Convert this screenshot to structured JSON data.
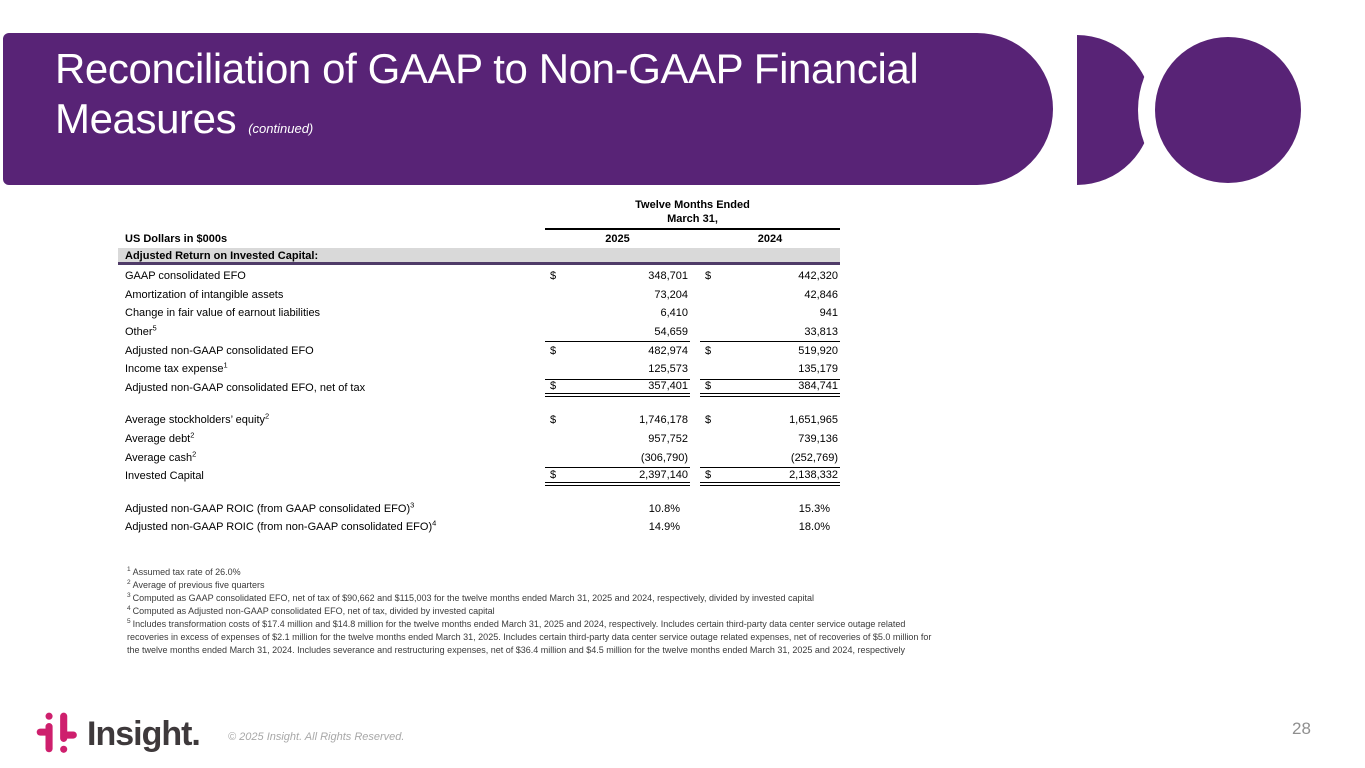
{
  "slide": {
    "title": {
      "line1": "Reconciliation of GAAP to Non-GAAP Financial",
      "line2": "Measures",
      "continued": "(continued)"
    },
    "page_number": "28",
    "copyright": "© 2025 Insight. All Rights Reserved.",
    "logo_text": "Insight.",
    "colors": {
      "banner_purple": "#582376",
      "logo_pink": "#ce1f6d",
      "section_band_gray": "#d9d9d9",
      "section_rule_purple": "#4f3b68",
      "logo_text_dark": "#3e393b"
    }
  },
  "table": {
    "period_header_line1": "Twelve Months Ended",
    "period_header_line2": "March 31,",
    "units_label": "US Dollars in $000s",
    "col_2025": "2025",
    "col_2024": "2024",
    "section_header": "Adjusted Return on Invested Capital:",
    "rows": [
      {
        "label": "GAAP consolidated EFO",
        "sup": "",
        "d1": "$",
        "v1": "348,701",
        "d2": "$",
        "v2": "442,320",
        "style": ""
      },
      {
        "label": "Amortization of intangible assets",
        "sup": "",
        "d1": "",
        "v1": "73,204",
        "d2": "",
        "v2": "42,846",
        "style": ""
      },
      {
        "label": "Change in fair value of earnout liabilities",
        "sup": "",
        "d1": "",
        "v1": "6,410",
        "d2": "",
        "v2": "941",
        "style": ""
      },
      {
        "label": "Other",
        "sup": "5",
        "d1": "",
        "v1": "54,659",
        "d2": "",
        "v2": "33,813",
        "style": ""
      },
      {
        "label": "Adjusted non-GAAP consolidated EFO",
        "sup": "",
        "d1": "$",
        "v1": "482,974",
        "d2": "$",
        "v2": "519,920",
        "style": "top"
      },
      {
        "label": "Income tax expense",
        "sup": "1",
        "d1": "",
        "v1": "125,573",
        "d2": "",
        "v2": "135,179",
        "style": ""
      },
      {
        "label": "Adjusted non-GAAP consolidated EFO, net of tax",
        "sup": "",
        "d1": "$",
        "v1": "357,401",
        "d2": "$",
        "v2": "384,741",
        "style": "top dbl"
      },
      {
        "style": "spacer"
      },
      {
        "label": "Average stockholders’ equity",
        "sup": "2",
        "d1": "$",
        "v1": "1,746,178",
        "d2": "$",
        "v2": "1,651,965",
        "style": ""
      },
      {
        "label": "Average debt",
        "sup": "2",
        "d1": "",
        "v1": "957,752",
        "d2": "",
        "v2": "739,136",
        "style": ""
      },
      {
        "label": "Average cash",
        "sup": "2",
        "d1": "",
        "v1": "(306,790)",
        "d2": "",
        "v2": "(252,769)",
        "style": ""
      },
      {
        "label": "Invested Capital",
        "sup": "",
        "d1": "$",
        "v1": "2,397,140",
        "d2": "$",
        "v2": "2,138,332",
        "style": "top dbl"
      },
      {
        "style": "spacer"
      },
      {
        "label": "Adjusted non-GAAP ROIC (from GAAP consolidated EFO)",
        "sup": "3",
        "d1": "",
        "v1": "10.8%",
        "d2": "",
        "v2": "15.3%",
        "style": "pct"
      },
      {
        "label": "Adjusted non-GAAP ROIC (from non-GAAP consolidated EFO)",
        "sup": "4",
        "d1": "",
        "v1": "14.9%",
        "d2": "",
        "v2": "18.0%",
        "style": "pct"
      }
    ]
  },
  "footnotes": [
    {
      "sup": "1",
      "lines": [
        "Assumed tax rate of 26.0%"
      ]
    },
    {
      "sup": "2",
      "lines": [
        "Average of previous five quarters"
      ]
    },
    {
      "sup": "3",
      "lines": [
        "Computed as GAAP consolidated EFO, net of tax of $90,662 and $115,003 for the twelve months ended March 31, 2025 and 2024, respectively, divided by invested capital"
      ]
    },
    {
      "sup": "4",
      "lines": [
        "Computed as Adjusted non-GAAP consolidated EFO, net of tax, divided by invested capital"
      ]
    },
    {
      "sup": "5",
      "lines": [
        "Includes transformation costs of $17.4 million and $14.8 million for the twelve months ended March 31, 2025 and 2024, respectively. Includes certain third-party data center service outage related",
        "recoveries in excess of expenses of $2.1 million for the twelve months ended March 31, 2025. Includes certain third-party data center service outage related expenses, net of recoveries of $5.0 million for",
        "the twelve months ended March 31, 2024. Includes severance and restructuring expenses, net of $36.4 million and $4.5 million for the twelve months ended March 31, 2025 and 2024, respectively"
      ]
    }
  ]
}
